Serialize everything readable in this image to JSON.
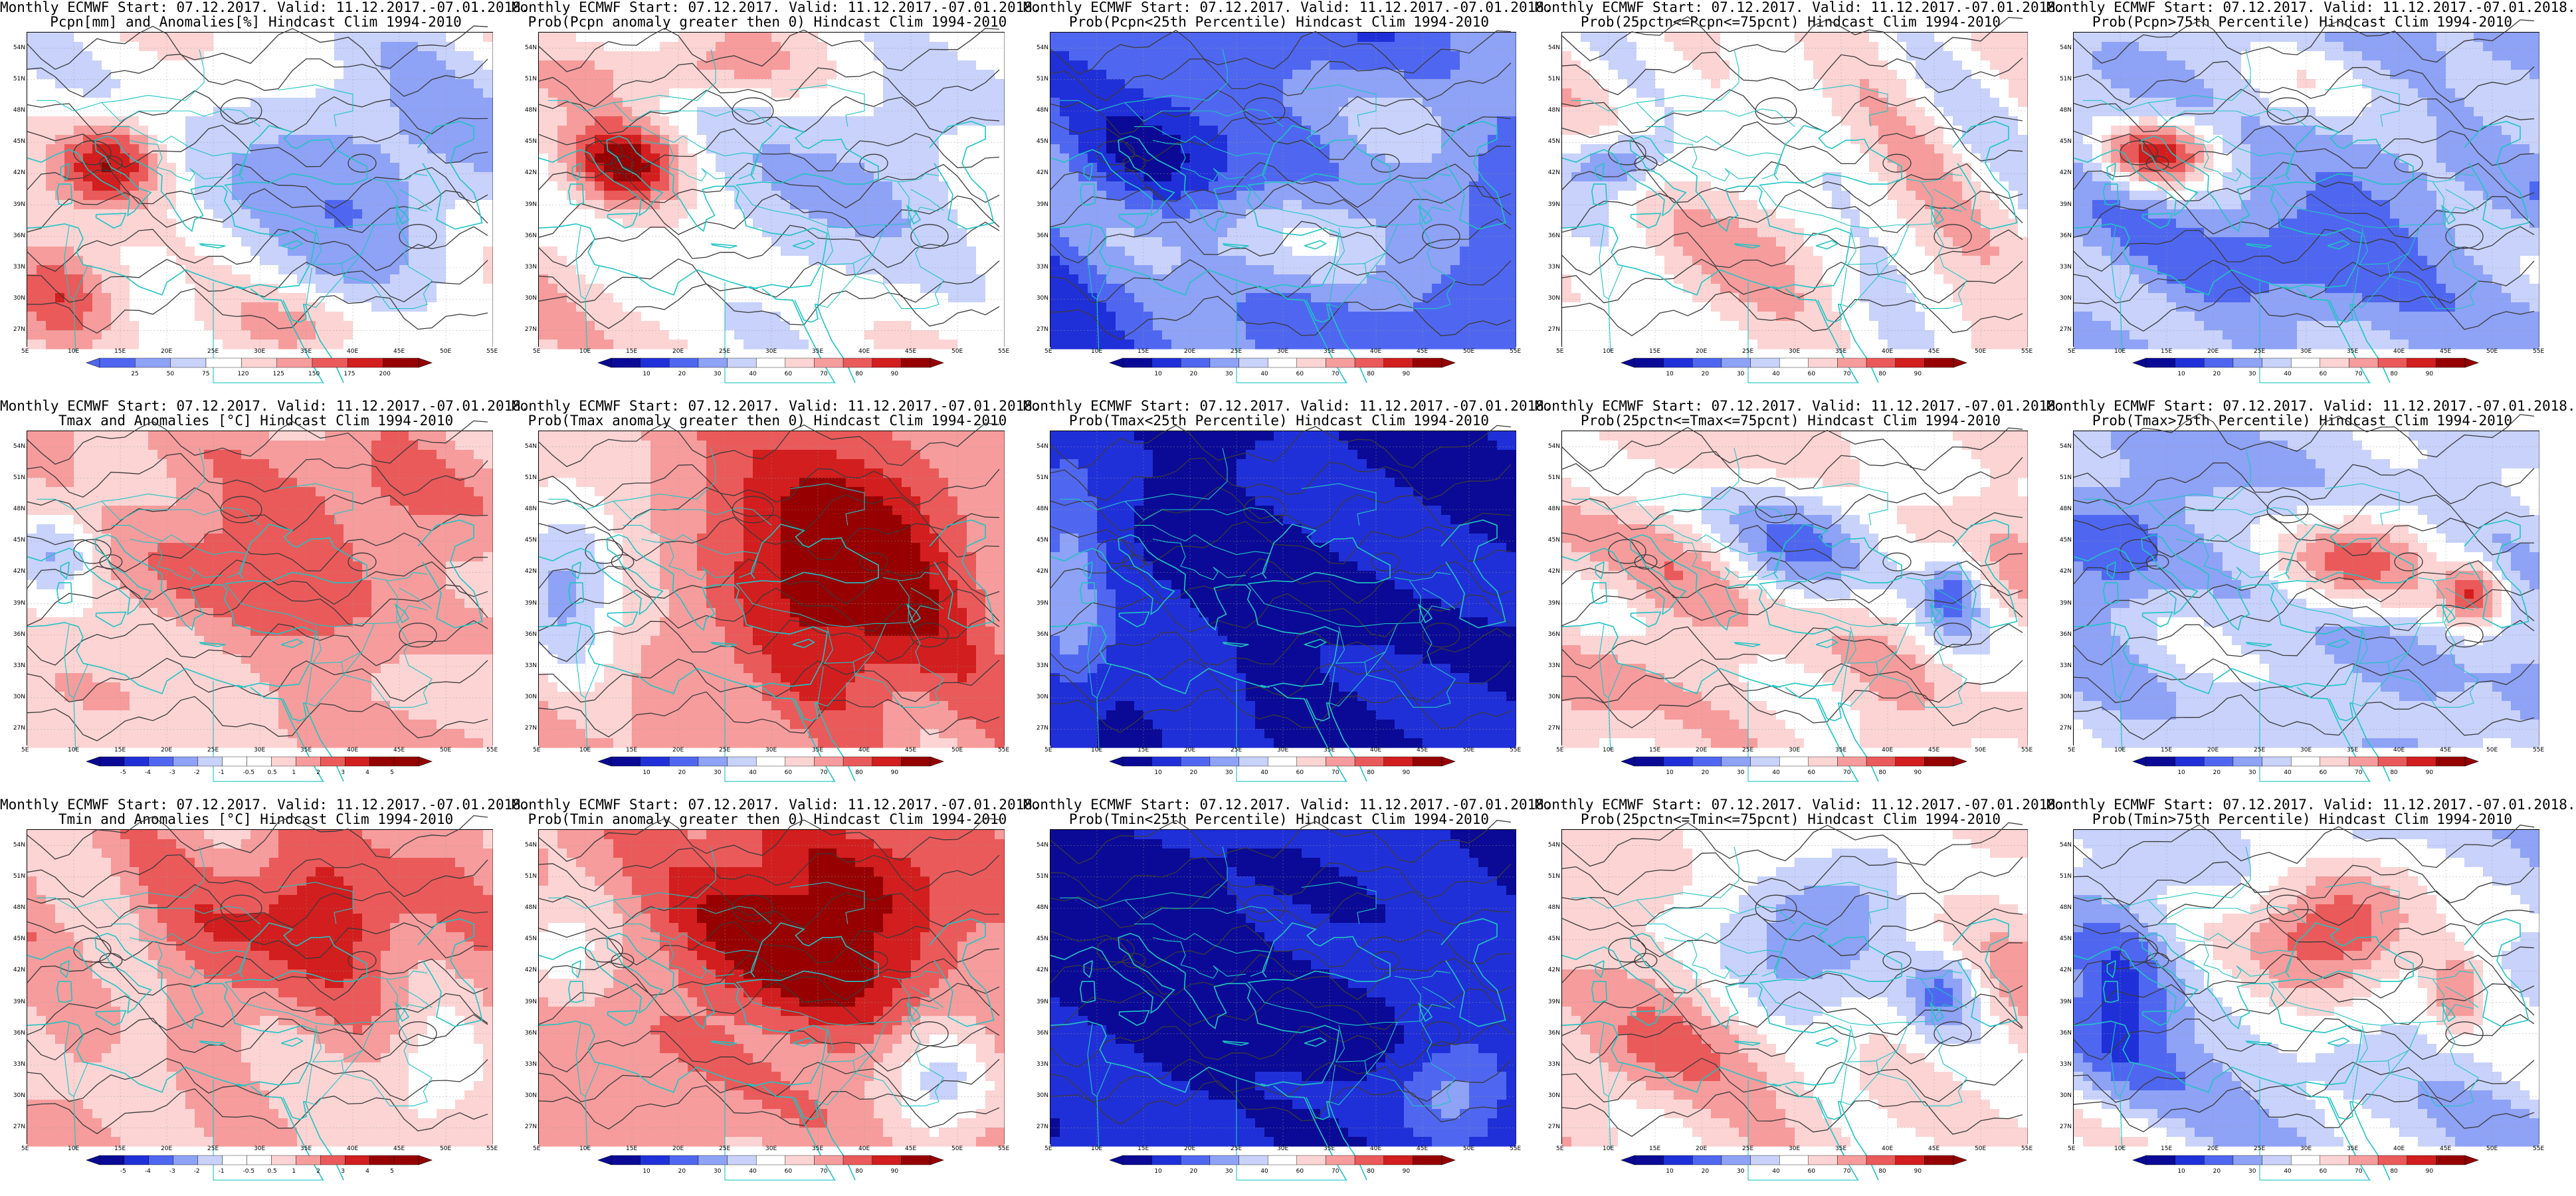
{
  "figure": {
    "lon_ticks": [
      "5E",
      "10E",
      "15E",
      "20E",
      "25E",
      "30E",
      "35E",
      "40E",
      "45E",
      "50E",
      "55E"
    ],
    "lat_ticks": [
      "54N",
      "51N",
      "48N",
      "45N",
      "42N",
      "39N",
      "36N",
      "33N",
      "30N",
      "27N"
    ],
    "colors": {
      "coast": "#20c4c4",
      "contour": "#3a3a3a",
      "grid": "#9a9a9a"
    },
    "rows": [
      {
        "variable": "Pcpn",
        "panels": [
          {
            "title1": "Monthly ECMWF Start: 07.12.2017. Valid: 11.12.2017.-07.01.2018.",
            "title2": "Pcpn[mm] and Anomalies[%] Hindcast Clim 1994-2010",
            "scale": "anom_pct",
            "field": "pcpn_anom",
            "colorbar_ticks": [
              "25",
              "50",
              "75",
              "120",
              "125",
              "150",
              "175",
              "200"
            ]
          },
          {
            "title1": "Monthly ECMWF Start: 07.12.2017. Valid: 11.12.2017.-07.01.2018.",
            "title2": "Prob(Pcpn anomaly greater then 0) Hindcast Clim 1994-2010",
            "scale": "prob",
            "field": "pcpn_pos",
            "colorbar_ticks": [
              "10",
              "20",
              "30",
              "40",
              "60",
              "70",
              "80",
              "90"
            ]
          },
          {
            "title1": "Monthly ECMWF Start: 07.12.2017. Valid: 11.12.2017.-07.01.2018.",
            "title2": "Prob(Pcpn<25th Percentile) Hindcast Clim 1994-2010",
            "scale": "prob",
            "field": "pcpn_low",
            "colorbar_ticks": [
              "10",
              "20",
              "30",
              "40",
              "60",
              "70",
              "80",
              "90"
            ]
          },
          {
            "title1": "Monthly ECMWF Start: 07.12.2017. Valid: 11.12.2017.-07.01.2018.",
            "title2": "Prob(25pctn<=Pcpn<=75pcnt) Hindcast Clim 1994-2010",
            "scale": "prob",
            "field": "pcpn_mid",
            "colorbar_ticks": [
              "10",
              "20",
              "30",
              "40",
              "60",
              "70",
              "80",
              "90"
            ]
          },
          {
            "title1": "Monthly ECMWF Start: 07.12.2017. Valid: 11.12.2017.-07.01.2018.",
            "title2": "Prob(Pcpn>75th Percentile) Hindcast Clim 1994-2010",
            "scale": "prob",
            "field": "pcpn_high",
            "colorbar_ticks": [
              "10",
              "20",
              "30",
              "40",
              "60",
              "70",
              "80",
              "90"
            ]
          }
        ]
      },
      {
        "variable": "Tmax",
        "panels": [
          {
            "title1": "Monthly ECMWF Start: 07.12.2017. Valid: 11.12.2017.-07.01.2018.",
            "title2": "Tmax and Anomalies [°C] Hindcast Clim 1994-2010",
            "scale": "anom_temp",
            "field": "tmax_anom",
            "colorbar_ticks": [
              "-5",
              "-4",
              "-3",
              "-2",
              "-1",
              "-0.5",
              "0.5",
              "1",
              "2",
              "3",
              "4",
              "5"
            ]
          },
          {
            "title1": "Monthly ECMWF Start: 07.12.2017. Valid: 11.12.2017.-07.01.2018.",
            "title2": "Prob(Tmax anomaly greater then 0) Hindcast Clim 1994-2010",
            "scale": "prob",
            "field": "tmax_pos",
            "colorbar_ticks": [
              "10",
              "20",
              "30",
              "40",
              "60",
              "70",
              "80",
              "90"
            ]
          },
          {
            "title1": "Monthly ECMWF Start: 07.12.2017. Valid: 11.12.2017.-07.01.2018.",
            "title2": "Prob(Tmax<25th Percentile) Hindcast Clim 1994-2010",
            "scale": "prob",
            "field": "tmax_low",
            "colorbar_ticks": [
              "10",
              "20",
              "30",
              "40",
              "60",
              "70",
              "80",
              "90"
            ]
          },
          {
            "title1": "Monthly ECMWF Start: 07.12.2017. Valid: 11.12.2017.-07.01.2018.",
            "title2": "Prob(25pctn<=Tmax<=75pcnt) Hindcast Clim 1994-2010",
            "scale": "prob",
            "field": "tmax_mid",
            "colorbar_ticks": [
              "10",
              "20",
              "30",
              "40",
              "60",
              "70",
              "80",
              "90"
            ]
          },
          {
            "title1": "Monthly ECMWF Start: 07.12.2017. Valid: 11.12.2017.-07.01.2018.",
            "title2": "Prob(Tmax>75th Percentile) Hindcast Clim 1994-2010",
            "scale": "prob",
            "field": "tmax_high",
            "colorbar_ticks": [
              "10",
              "20",
              "30",
              "40",
              "60",
              "70",
              "80",
              "90"
            ]
          }
        ]
      },
      {
        "variable": "Tmin",
        "panels": [
          {
            "title1": "Monthly ECMWF Start: 07.12.2017. Valid: 11.12.2017.-07.01.2018.",
            "title2": "Tmin and Anomalies [°C] Hindcast Clim 1994-2010",
            "scale": "anom_temp",
            "field": "tmin_anom",
            "colorbar_ticks": [
              "-5",
              "-4",
              "-3",
              "-2",
              "-1",
              "-0.5",
              "0.5",
              "1",
              "2",
              "3",
              "4",
              "5"
            ]
          },
          {
            "title1": "Monthly ECMWF Start: 07.12.2017. Valid: 11.12.2017.-07.01.2018.",
            "title2": "Prob(Tmin anomaly greater then 0) Hindcast Clim 1994-2010",
            "scale": "prob",
            "field": "tmin_pos",
            "colorbar_ticks": [
              "10",
              "20",
              "30",
              "40",
              "60",
              "70",
              "80",
              "90"
            ]
          },
          {
            "title1": "Monthly ECMWF Start: 07.12.2017. Valid: 11.12.2017.-07.01.2018.",
            "title2": "Prob(Tmin<25th Percentile) Hindcast Clim 1994-2010",
            "scale": "prob",
            "field": "tmin_low",
            "colorbar_ticks": [
              "10",
              "20",
              "30",
              "40",
              "60",
              "70",
              "80",
              "90"
            ]
          },
          {
            "title1": "Monthly ECMWF Start: 07.12.2017. Valid: 11.12.2017.-07.01.2018.",
            "title2": "Prob(25pctn<=Tmin<=75pcnt) Hindcast Clim 1994-2010",
            "scale": "prob",
            "field": "tmin_mid",
            "colorbar_ticks": [
              "10",
              "20",
              "30",
              "40",
              "60",
              "70",
              "80",
              "90"
            ]
          },
          {
            "title1": "Monthly ECMWF Start: 07.12.2017. Valid: 11.12.2017.-07.01.2018.",
            "title2": "Prob(Tmin>75th Percentile) Hindcast Clim 1994-2010",
            "scale": "prob",
            "field": "tmin_high",
            "colorbar_ticks": [
              "10",
              "20",
              "30",
              "40",
              "60",
              "70",
              "80",
              "90"
            ]
          }
        ]
      }
    ]
  }
}
